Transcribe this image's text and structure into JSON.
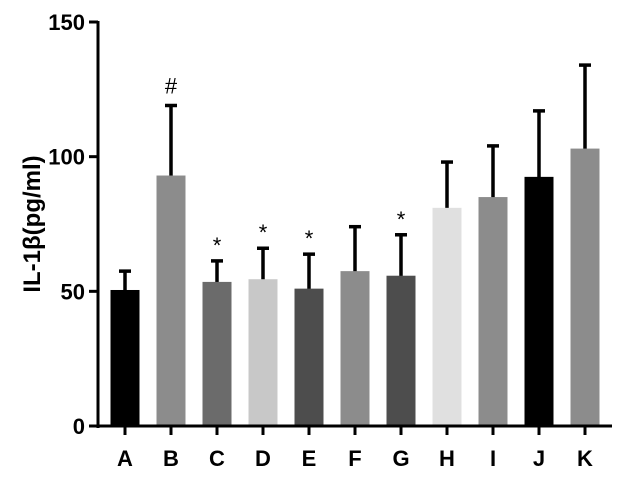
{
  "chart_data": {
    "type": "bar",
    "title": "",
    "xlabel": "",
    "ylabel": "IL-1β(pg/ml)",
    "ylim": [
      0,
      150
    ],
    "yticks": [
      0,
      50,
      100,
      150
    ],
    "grid": false,
    "legend": null,
    "categories": [
      "A",
      "B",
      "C",
      "D",
      "E",
      "F",
      "G",
      "H",
      "I",
      "J",
      "K"
    ],
    "values": [
      50.5,
      93,
      53.5,
      54.5,
      51,
      57.5,
      55.8,
      81,
      85,
      92.5,
      103
    ],
    "error_upper": [
      57.5,
      119,
      61.3,
      66,
      63.8,
      74,
      71,
      98,
      104,
      117,
      134
    ],
    "annotations": [
      "",
      "#",
      "*",
      "*",
      "*",
      "",
      "*",
      "",
      "",
      "",
      ""
    ],
    "colors": [
      "#000000",
      "#8c8c8c",
      "#6b6b6b",
      "#c8c8c8",
      "#4d4d4d",
      "#8c8c8c",
      "#4d4d4d",
      "#e0e0e0",
      "#8c8c8c",
      "#000000",
      "#8c8c8c"
    ]
  }
}
